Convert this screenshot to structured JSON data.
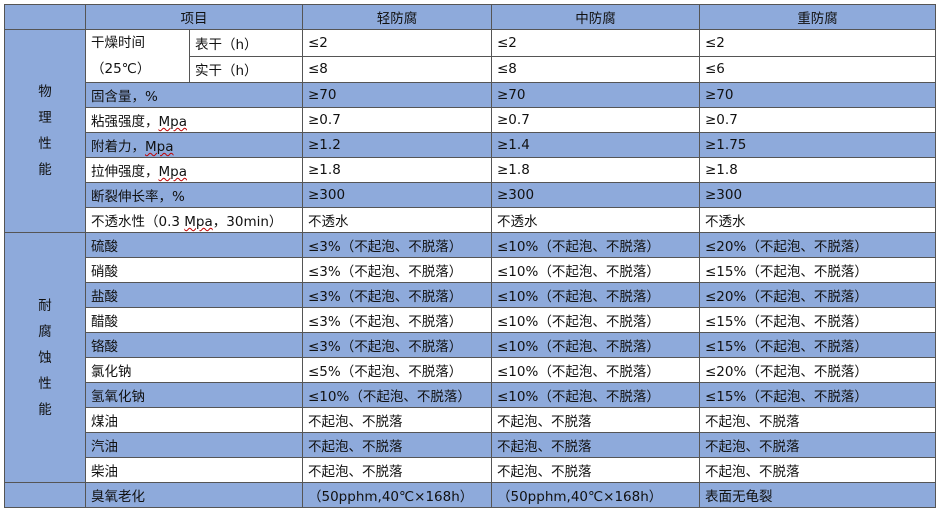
{
  "headers": {
    "project": "项目",
    "light": "轻防腐",
    "medium": "中防腐",
    "heavy": "重防腐"
  },
  "physical": {
    "group_chars": [
      "物",
      "理",
      "性",
      "能"
    ],
    "dry_time_label_line1": "干燥时间",
    "dry_time_label_line2": "（25℃）",
    "rows": [
      {
        "sub": "表干（h）",
        "light": "≤2",
        "medium": "≤2",
        "heavy": "≤2"
      },
      {
        "sub": "实干（h）",
        "light": "≤8",
        "medium": "≤8",
        "heavy": "≤6"
      },
      {
        "name": "固含量，%",
        "light": "≥70",
        "medium": "≥70",
        "heavy": "≥70"
      },
      {
        "name_prefix": "粘强强度，",
        "name_unit": "Mpa",
        "light": "≥0.7",
        "medium": "≥0.7",
        "heavy": "≥0.7"
      },
      {
        "name_prefix": "附着力，",
        "name_unit": "Mpa",
        "light": "≥1.2",
        "medium": "≥1.4",
        "heavy": "≥1.75"
      },
      {
        "name_prefix": "拉伸强度，",
        "name_unit": "Mpa",
        "light": "≥1.8",
        "medium": "≥1.8",
        "heavy": "≥1.8"
      },
      {
        "name": "断裂伸长率，%",
        "light": "≥300",
        "medium": "≥300",
        "heavy": "≥300"
      },
      {
        "name_prefix": "不透水性（0.3 ",
        "name_unit": "Mpa",
        "name_suffix": "，30min）",
        "light": "不透水",
        "medium": "不透水",
        "heavy": "不透水"
      }
    ]
  },
  "corrosion": {
    "group_chars": [
      "耐",
      "腐",
      "蚀",
      "性",
      "能"
    ],
    "rows": [
      {
        "name": "硫酸",
        "light": "≤3%（不起泡、不脱落）",
        "medium": "≤10%（不起泡、不脱落）",
        "heavy": "≤20%（不起泡、不脱落）"
      },
      {
        "name": "硝酸",
        "light": "≤3%（不起泡、不脱落）",
        "medium": "≤10%（不起泡、不脱落）",
        "heavy": "≤15%（不起泡、不脱落）"
      },
      {
        "name": "盐酸",
        "light": "≤3%（不起泡、不脱落）",
        "medium": "≤10%（不起泡、不脱落）",
        "heavy": "≤20%（不起泡、不脱落）"
      },
      {
        "name": "醋酸",
        "light": "≤3%（不起泡、不脱落）",
        "medium": "≤10%（不起泡、不脱落）",
        "heavy": "≤15%（不起泡、不脱落）"
      },
      {
        "name": "铬酸",
        "light": "≤3%（不起泡、不脱落）",
        "medium": "≤10%（不起泡、不脱落）",
        "heavy": "≤15%（不起泡、不脱落）"
      },
      {
        "name": "氯化钠",
        "light": "≤5%（不起泡、不脱落）",
        "medium": "≤10%（不起泡、不脱落）",
        "heavy": "≤20%（不起泡、不脱落）"
      },
      {
        "name": "氢氧化钠",
        "light": "≤10%（不起泡、不脱落）",
        "medium": "≤10%（不起泡、不脱落）",
        "heavy": "≤15%（不起泡、不脱落）"
      },
      {
        "name": "煤油",
        "light": "不起泡、不脱落",
        "medium": "不起泡、不脱落",
        "heavy": "不起泡、不脱落"
      },
      {
        "name": "汽油",
        "light": "不起泡、不脱落",
        "medium": "不起泡、不脱落",
        "heavy": "不起泡、不脱落"
      },
      {
        "name": "柴油",
        "light": "不起泡、不脱落",
        "medium": "不起泡、不脱落",
        "heavy": "不起泡、不脱落"
      }
    ]
  },
  "ozone": {
    "name": "臭氧老化",
    "light": "（50pphm,40℃×168h）",
    "medium": "（50pphm,40℃×168h）",
    "heavy": "表面无龟裂"
  }
}
